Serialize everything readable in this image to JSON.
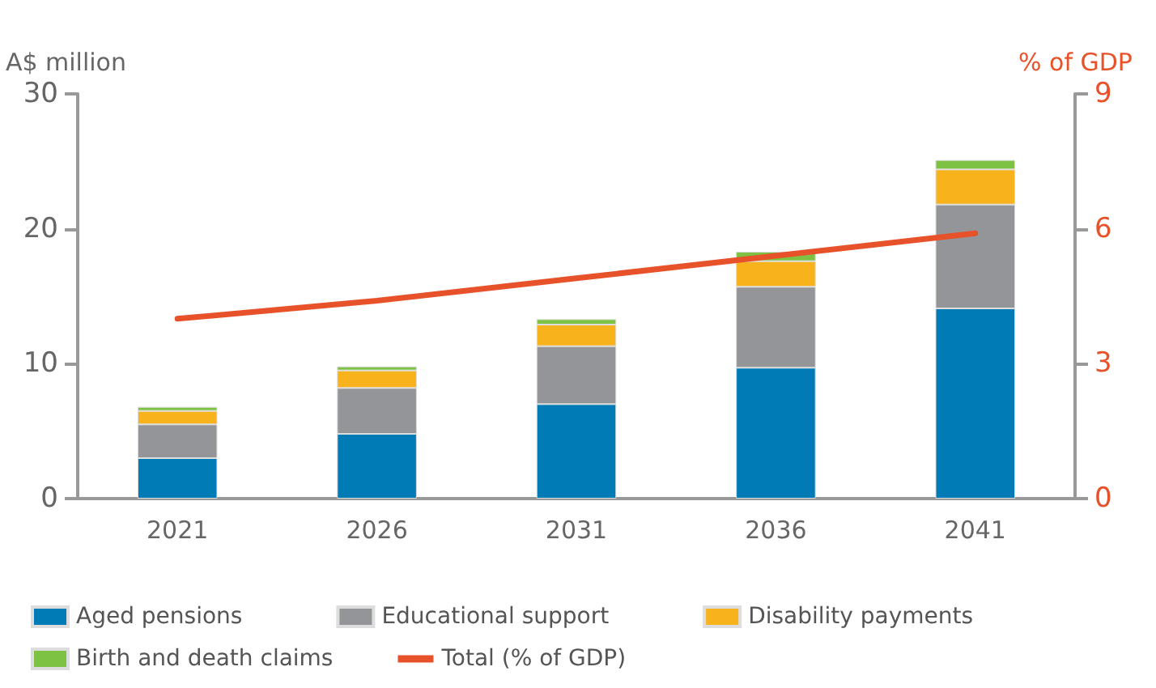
{
  "chart_data": {
    "type": "bar",
    "stacked": true,
    "ylabel": "A$ million",
    "y2label": "% of GDP",
    "categories": [
      "2021",
      "2026",
      "2031",
      "2036",
      "2041"
    ],
    "series": [
      {
        "name": "Aged pensions",
        "color": "#007bb6",
        "values": [
          3.0,
          4.8,
          7.0,
          9.7,
          14.1
        ]
      },
      {
        "name": "Educational support",
        "color": "#939598",
        "values": [
          2.5,
          3.4,
          4.3,
          6.0,
          7.7
        ]
      },
      {
        "name": "Disability payments",
        "color": "#f8b21c",
        "values": [
          1.0,
          1.3,
          1.6,
          1.9,
          2.6
        ]
      },
      {
        "name": "Birth and death claims",
        "color": "#7dc242",
        "values": [
          0.3,
          0.3,
          0.4,
          0.7,
          0.7
        ]
      },
      {
        "name": "Total (% of GDP)",
        "type": "line",
        "axis": "y2",
        "color": "#e8522a",
        "values": [
          4.0,
          4.4,
          4.9,
          5.4,
          5.9
        ]
      }
    ],
    "ylim": [
      0,
      30
    ],
    "yticks": [
      0,
      10,
      20,
      30
    ],
    "y2lim": [
      0,
      9
    ],
    "y2ticks": [
      0,
      3,
      6,
      9
    ],
    "grid": false,
    "legend": "bottom",
    "marker": "none"
  }
}
